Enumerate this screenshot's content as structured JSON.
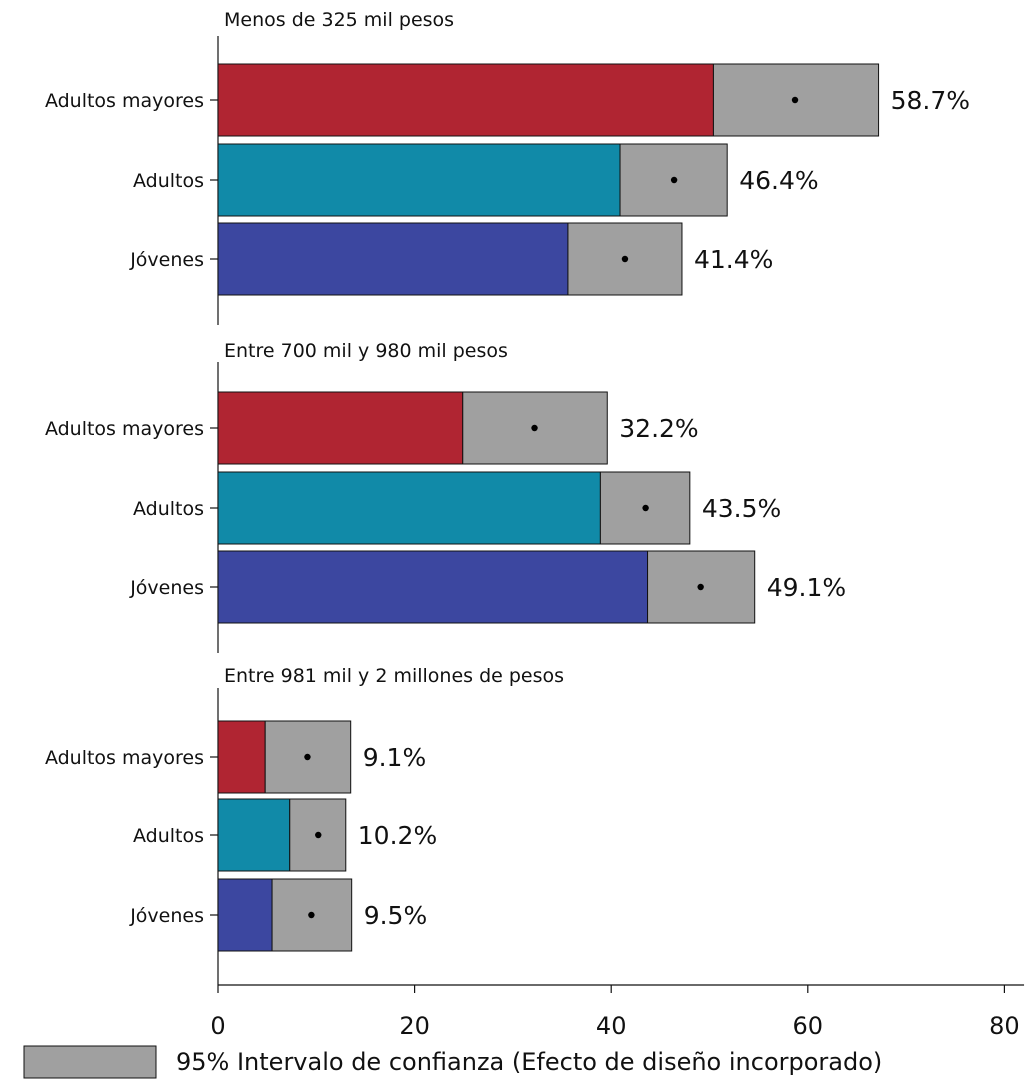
{
  "chart_data": {
    "type": "bar",
    "orientation": "horizontal",
    "x_ticks": [
      0,
      20,
      40,
      60,
      80
    ],
    "xlim": [
      0,
      82
    ],
    "colors": {
      "Adultos mayores": "#b02532",
      "Adultos": "#118aa8",
      "Jóvenes": "#3c47a0",
      "ci": "#a0a0a0"
    },
    "panels": [
      {
        "title": "Menos de 325 mil pesos",
        "bars": [
          {
            "category": "Adultos mayores",
            "value": 58.7,
            "label": "58.7%",
            "ci": [
              50.4,
              67.2
            ]
          },
          {
            "category": "Adultos",
            "value": 46.4,
            "label": "46.4%",
            "ci": [
              40.9,
              51.8
            ]
          },
          {
            "category": "Jóvenes",
            "value": 41.4,
            "label": "41.4%",
            "ci": [
              35.6,
              47.2
            ]
          }
        ]
      },
      {
        "title": "Entre 700 mil y 980 mil pesos",
        "bars": [
          {
            "category": "Adultos mayores",
            "value": 32.2,
            "label": "32.2%",
            "ci": [
              24.9,
              39.6
            ]
          },
          {
            "category": "Adultos",
            "value": 43.5,
            "label": "43.5%",
            "ci": [
              38.9,
              48.0
            ]
          },
          {
            "category": "Jóvenes",
            "value": 49.1,
            "label": "49.1%",
            "ci": [
              43.7,
              54.6
            ]
          }
        ]
      },
      {
        "title": "Entre 981 mil y 2 millones de pesos",
        "bars": [
          {
            "category": "Adultos mayores",
            "value": 9.1,
            "label": "9.1%",
            "ci": [
              4.8,
              13.5
            ]
          },
          {
            "category": "Adultos",
            "value": 10.2,
            "label": "10.2%",
            "ci": [
              7.3,
              13.0
            ]
          },
          {
            "category": "Jóvenes",
            "value": 9.5,
            "label": "9.5%",
            "ci": [
              5.5,
              13.6
            ]
          }
        ]
      }
    ],
    "legend": {
      "label": "95% Intervalo de confianza (Efecto de diseño incorporado)",
      "placement": "bottom-left"
    },
    "grid": false
  }
}
